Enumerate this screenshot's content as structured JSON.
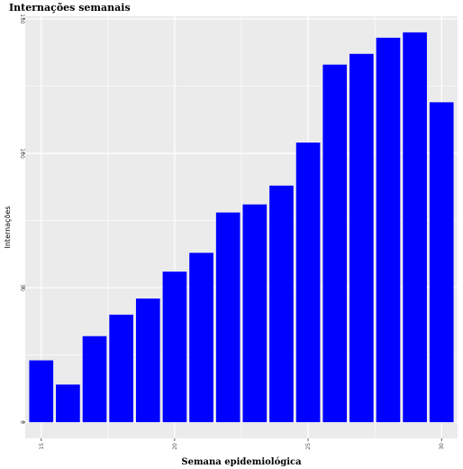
{
  "chart_data": {
    "type": "bar",
    "title": "Internações semanais",
    "xlabel": "Semana epidemiológica",
    "ylabel": "Internações",
    "x": [
      15,
      16,
      17,
      18,
      19,
      20,
      21,
      22,
      23,
      24,
      25,
      26,
      27,
      28,
      29,
      30
    ],
    "values": [
      23,
      14,
      32,
      40,
      46,
      56,
      63,
      78,
      81,
      88,
      104,
      133,
      137,
      143,
      145,
      119
    ],
    "xticks": [
      "15",
      "20",
      "25",
      "30"
    ],
    "yticks": [
      "0",
      "50",
      "100",
      "150"
    ],
    "ylim": [
      -6,
      151
    ],
    "xlim": [
      14.4,
      30.6
    ],
    "bar_color": "#0000ff",
    "panel_color": "#ebebeb",
    "grid": true,
    "legend": "none"
  }
}
